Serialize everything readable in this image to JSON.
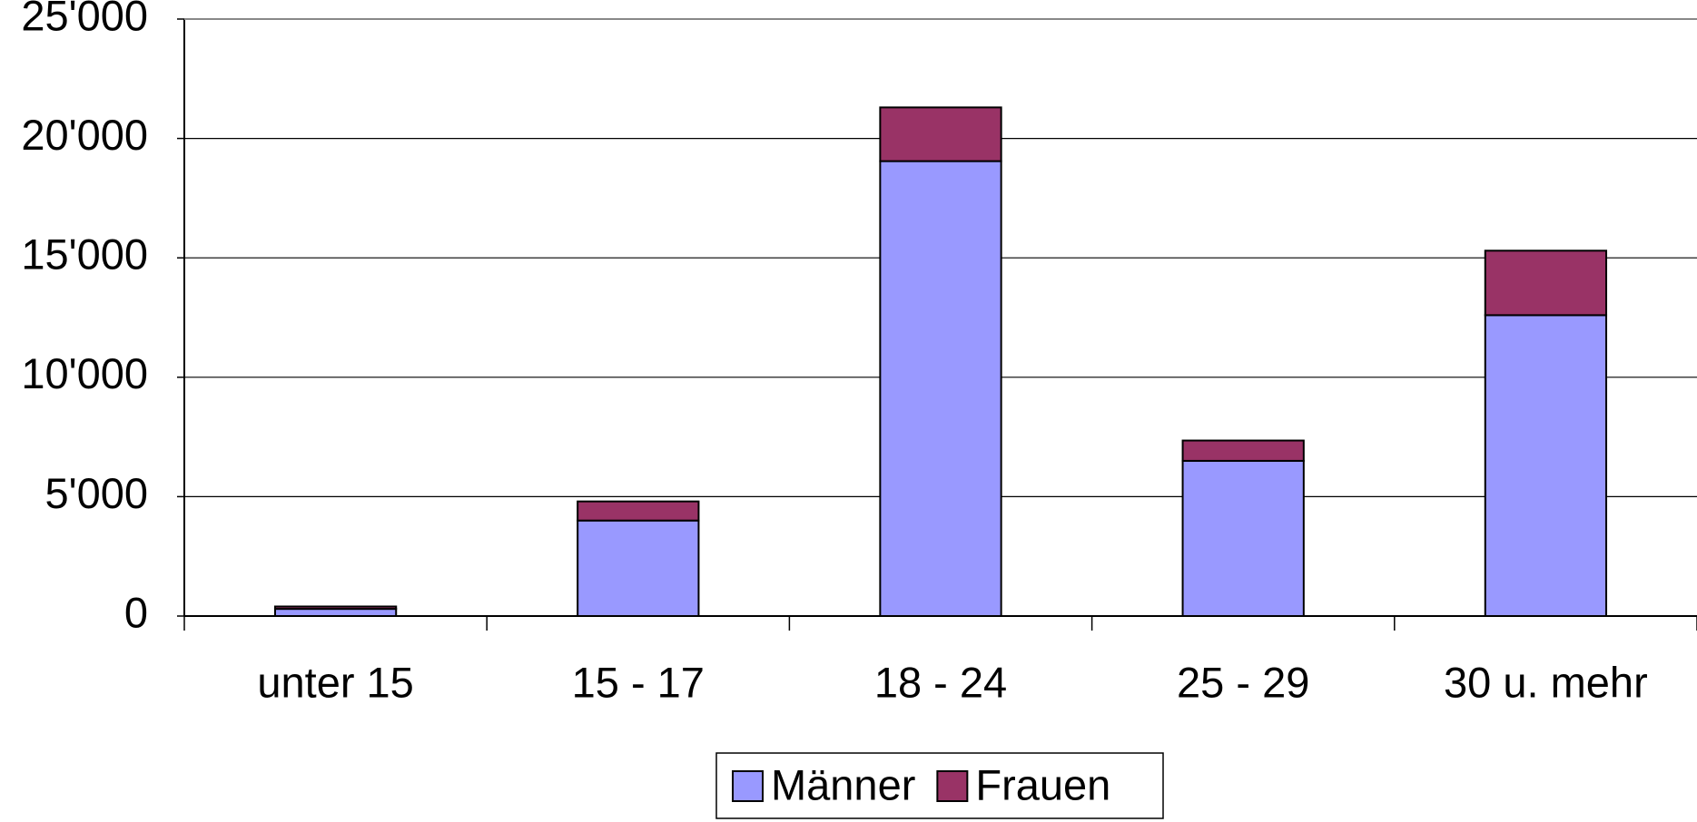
{
  "chart_data": {
    "type": "stacked_bar",
    "categories": [
      "unter 15",
      "15 - 17",
      "18 - 24",
      "25 - 29",
      "30 u. mehr"
    ],
    "series": [
      {
        "name": "Männer",
        "color": "#9999ff",
        "values": [
          300,
          4000,
          19050,
          6500,
          12600
        ]
      },
      {
        "name": "Frauen",
        "color": "#993366",
        "values": [
          100,
          800,
          2250,
          850,
          2700
        ]
      }
    ],
    "ylim": [
      0,
      25000
    ],
    "yticks": [
      0,
      {
        "value": 5000,
        "label": "5'000"
      },
      {
        "value": 10000,
        "label": "10'000"
      },
      {
        "value": 15000,
        "label": "15'000"
      },
      {
        "value": 20000,
        "label": "20'000"
      },
      {
        "value": 25000,
        "label": "25'000"
      }
    ],
    "grid": true
  }
}
